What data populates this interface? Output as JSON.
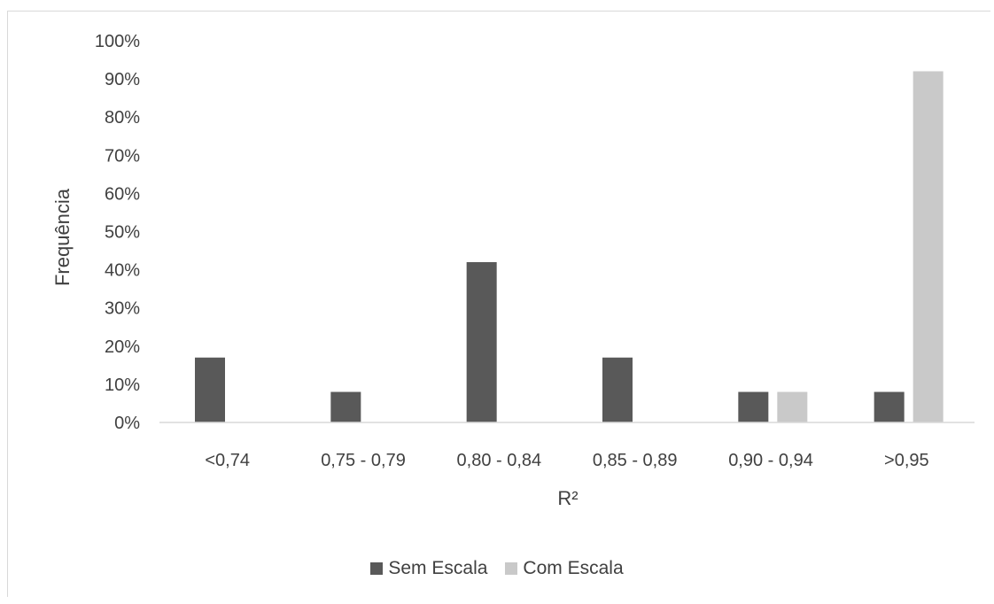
{
  "chart_data": {
    "type": "bar",
    "title": "",
    "xlabel": "R²",
    "ylabel": "Frequência",
    "categories": [
      "<0,74",
      "0,75 - 0,79",
      "0,80 - 0,84",
      "0,85 - 0,89",
      "0,90 - 0,94",
      ">0,95"
    ],
    "series": [
      {
        "name": "Sem Escala",
        "color": "#595959",
        "values": [
          17,
          8,
          42,
          17,
          8,
          8
        ]
      },
      {
        "name": "Com Escala",
        "color": "#c9c9c9",
        "values": [
          0,
          0,
          0,
          0,
          8,
          92
        ]
      }
    ],
    "ylim": [
      0,
      100
    ],
    "yticks": [
      "0%",
      "10%",
      "20%",
      "30%",
      "40%",
      "50%",
      "60%",
      "70%",
      "80%",
      "90%",
      "100%"
    ],
    "grid": false,
    "legend_position": "bottom"
  }
}
